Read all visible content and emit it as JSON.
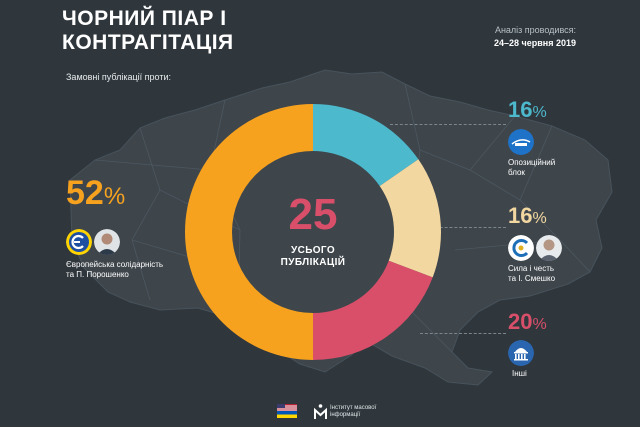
{
  "header": {
    "title_line1": "ЧОРНИЙ ПІАР І",
    "title_line2": "КОНТРАГІТАЦІЯ",
    "period_label": "Аналіз проводився:",
    "period_value": "24–28 червня 2019"
  },
  "subtitle": "Замовні публікації проти:",
  "total": {
    "value": "25",
    "label_line1": "УСЬОГО",
    "label_line2": "ПУБЛІКАЦІЙ"
  },
  "colors": {
    "background": "#2f373d",
    "orange": "#f7a21f",
    "teal": "#4db9cc",
    "cream": "#f3d7a0",
    "pink": "#d94f6a"
  },
  "chart_data": {
    "type": "pie",
    "title": "",
    "total": 25,
    "unit": "%",
    "series": [
      {
        "name": "Опозиційний блок",
        "value": 16,
        "color": "#4db9cc",
        "logo": "opposition-bloc-logo"
      },
      {
        "name": "Сила і честь та І. Смешко",
        "value": 16,
        "color": "#f3d7a0",
        "logo": "sila-i-chest-logo"
      },
      {
        "name": "Інші",
        "value": 20,
        "color": "#d94f6a",
        "logo": "parliament-icon"
      },
      {
        "name": "Європейська солідарність та П. Порошенко",
        "value": 52,
        "color": "#f7a21f",
        "logo": "eurosolidarity-logo"
      }
    ]
  },
  "legend": {
    "eurosol": {
      "pct": "52",
      "unit": "%",
      "line1": "Європейська солідарність",
      "line2": "та П. Порошенко"
    },
    "opposition": {
      "pct": "16",
      "unit": "%",
      "line1": "Опозиційний",
      "line2": "блок"
    },
    "sila": {
      "pct": "16",
      "unit": "%",
      "line1": "Сила і честь",
      "line2": "та І. Смешко"
    },
    "other": {
      "pct": "20",
      "unit": "%",
      "line1": "Інші"
    }
  },
  "footer": {
    "org_line1": "Інститут масової",
    "org_line2": "інформації",
    "flag": "usa-ukraine-flags",
    "org_logo": "imi-logo"
  }
}
